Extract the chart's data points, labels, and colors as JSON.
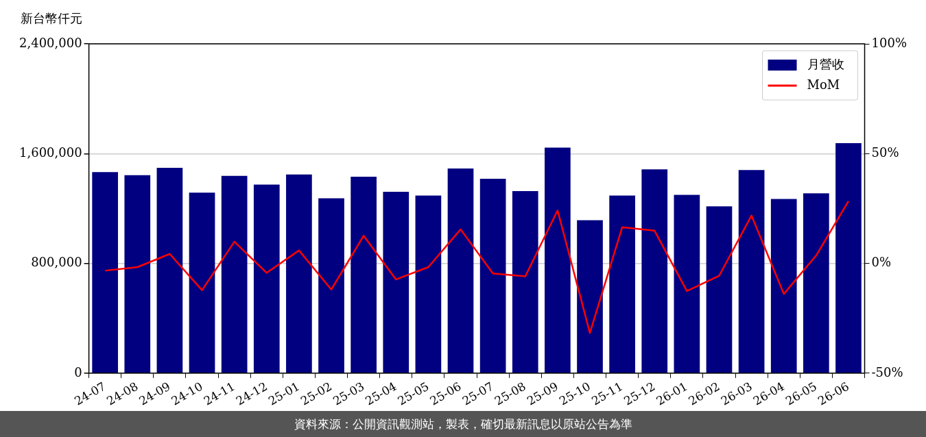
{
  "chart_data": {
    "type": "bar",
    "ylabel": "新台幣仟元",
    "categories": [
      "24-07",
      "24-08",
      "24-09",
      "24-10",
      "24-11",
      "24-12",
      "25-01",
      "25-02",
      "25-03",
      "25-04",
      "25-05",
      "25-06",
      "25-07",
      "25-08",
      "25-09",
      "25-10",
      "25-11",
      "25-12",
      "26-01",
      "26-02",
      "26-03",
      "26-04",
      "26-05",
      "26-06"
    ],
    "series": [
      {
        "name": "月營收",
        "color": "#000080",
        "values": [
          1465000,
          1443000,
          1496000,
          1316000,
          1438000,
          1374000,
          1448000,
          1274000,
          1432000,
          1322000,
          1295000,
          1491000,
          1417000,
          1327000,
          1644000,
          1115000,
          1295000,
          1485000,
          1300000,
          1216000,
          1480000,
          1269000,
          1311000,
          1676000
        ]
      },
      {
        "name": "MoM",
        "type": "line",
        "axis": "y2",
        "color": "#ff0000",
        "values": [
          -3.3,
          -1.7,
          4.3,
          -12.2,
          9.9,
          -4.3,
          5.9,
          -11.9,
          12.6,
          -7.3,
          -1.7,
          15.5,
          -4.6,
          -5.9,
          24.1,
          -31.7,
          16.5,
          14.9,
          -12.6,
          -5.6,
          21.8,
          -13.9,
          3.6,
          28.4
        ]
      }
    ],
    "ylim": [
      0,
      2400000
    ],
    "yticks": [
      {
        "value": 0,
        "label": "0"
      },
      {
        "value": 800000,
        "label": "800,000"
      },
      {
        "value": 1600000,
        "label": "1,600,000"
      },
      {
        "value": 2400000,
        "label": "2,400,000"
      }
    ],
    "y2lim": [
      -50,
      100
    ],
    "y2ticks": [
      {
        "value": -50,
        "label": "-50%"
      },
      {
        "value": 0,
        "label": "0%"
      },
      {
        "value": 50,
        "label": "50%"
      },
      {
        "value": 100,
        "label": "100%"
      }
    ],
    "grid": "y",
    "legend": "top right",
    "marker": "none",
    "line_style": "solid",
    "annotations": [
      "資料來源：公開資訊觀測站，製表，確切最新訊息以原站公告為準"
    ]
  }
}
